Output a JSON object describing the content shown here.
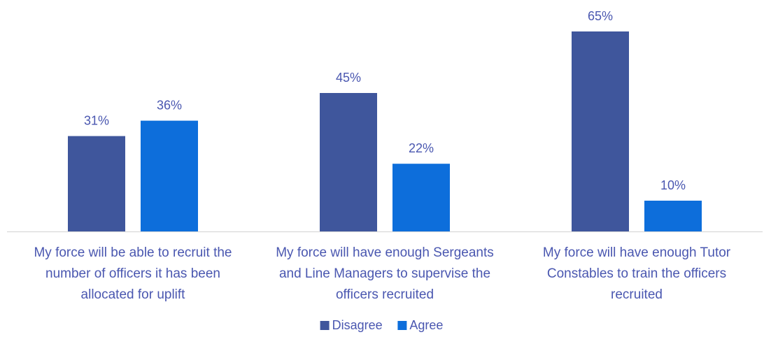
{
  "chart_data": {
    "type": "bar",
    "categories": [
      [
        "My force will be able to recruit the",
        "number of officers it has been",
        "allocated for uplift"
      ],
      [
        "My force will have enough Sergeants",
        "and Line Managers to supervise the",
        "officers recruited"
      ],
      [
        "My force will have enough Tutor",
        "Constables to train the officers",
        "recruited"
      ]
    ],
    "series": [
      {
        "name": "Disagree",
        "color": "#3f569c",
        "values": [
          31,
          45,
          65
        ],
        "labels": [
          "31%",
          "45%",
          "65%"
        ]
      },
      {
        "name": "Agree",
        "color": "#0d6edb",
        "values": [
          36,
          22,
          10
        ],
        "labels": [
          "36%",
          "22%",
          "10%"
        ]
      }
    ],
    "ylim": [
      0,
      70
    ],
    "value_unit": "%",
    "grid": false,
    "axis_line": true,
    "legend_position": "bottom-center",
    "label_color": "#4a57b0",
    "axis_color": "#d9d9d9"
  }
}
